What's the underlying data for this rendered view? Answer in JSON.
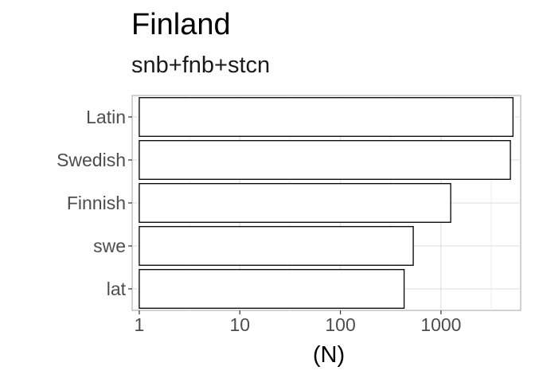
{
  "chart_data": {
    "type": "bar",
    "orientation": "horizontal",
    "title": "Finland",
    "subtitle": "snb+fnb+stcn",
    "xlabel": "(N)",
    "ylabel": "",
    "x_scale": "log10",
    "xlim": [
      0.85,
      6200
    ],
    "x_ticks": [
      1,
      10,
      100,
      1000
    ],
    "x_tick_labels": [
      "1",
      "10",
      "100",
      "1000"
    ],
    "categories": [
      "Latin",
      "Swedish",
      "Finnish",
      "swe",
      "lat"
    ],
    "values": [
      5200,
      4900,
      1250,
      530,
      430
    ],
    "bar_fill": "#ffffff",
    "bar_stroke": "#000000",
    "grid": true,
    "legend": "none"
  }
}
